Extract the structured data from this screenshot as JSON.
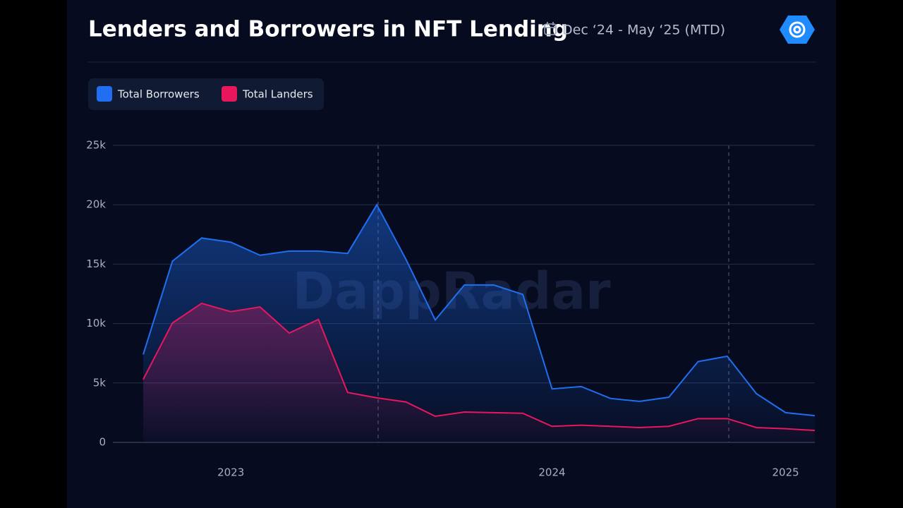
{
  "chart_data": {
    "type": "area",
    "title": "Lenders and Borrowers in NFT Lending",
    "subtitle": "Dec ‘24 - May ‘25 (MTD)",
    "watermark": "DappRadar",
    "categories": [
      null,
      null,
      null,
      "2023",
      null,
      null,
      null,
      null,
      null,
      null,
      null,
      null,
      null,
      null,
      "2024",
      null,
      null,
      null,
      null,
      null,
      null,
      null,
      "2025",
      null
    ],
    "series": [
      {
        "name": "Total Borrowers",
        "color": "#1f6ff0",
        "values": [
          7400,
          15250,
          17200,
          16850,
          15750,
          16100,
          16100,
          15900,
          20000,
          15400,
          10300,
          13250,
          13250,
          12450,
          4500,
          4700,
          3700,
          3450,
          3800,
          6800,
          7250,
          4100,
          2500,
          2250
        ]
      },
      {
        "name": "Total Landers",
        "color": "#e8175d",
        "values": [
          5300,
          10050,
          11700,
          11000,
          11400,
          9200,
          10350,
          4200,
          3750,
          3400,
          2200,
          2550,
          2500,
          2450,
          1350,
          1450,
          1350,
          1250,
          1350,
          2000,
          2000,
          1250,
          1150,
          1000
        ]
      }
    ],
    "ylim": [
      0,
      25000
    ],
    "yticks": [
      0,
      {
        "value": 5000,
        "label": "5k"
      },
      {
        "value": 10000,
        "label": "10k"
      },
      {
        "value": 15000,
        "label": "15k"
      },
      {
        "value": 20000,
        "label": "20k"
      },
      {
        "value": 25000,
        "label": "25k"
      }
    ],
    "grid": true
  }
}
